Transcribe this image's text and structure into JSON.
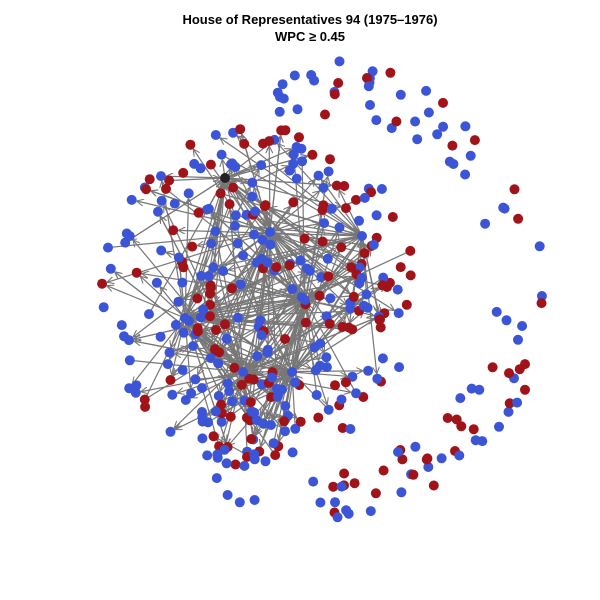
{
  "header": {
    "title": "House of Representatives 94 (1975–1976)",
    "subtitle": "WPC ≥ 0.45"
  }
}
